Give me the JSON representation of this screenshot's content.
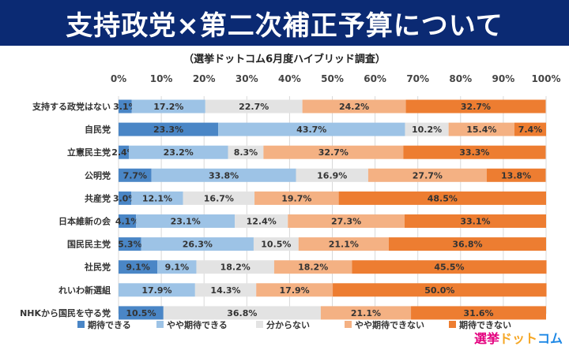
{
  "title": "支持政党×第二次補正予算について",
  "subtitle": "（選挙ドットコム6月度ハイブリッド調査）",
  "logo": {
    "part1": "選挙",
    "part2": "ドット",
    "part3": "コム"
  },
  "chart_data": {
    "type": "bar",
    "stacked": true,
    "orientation": "horizontal",
    "xlim": [
      0,
      100
    ],
    "x_ticks": [
      "0%",
      "10%",
      "20%",
      "30%",
      "40%",
      "50%",
      "60%",
      "70%",
      "80%",
      "90%",
      "100%"
    ],
    "legend_position": "bottom",
    "grid": true,
    "categories": [
      "支持する政党はない",
      "自民党",
      "立憲民主党",
      "公明党",
      "共産党",
      "日本維新の会",
      "国民民主党",
      "社民党",
      "れいわ新選組",
      "NHKから国民を守る党"
    ],
    "series": [
      {
        "name": "期待できる",
        "color": "#4a86c6",
        "values": [
          3.1,
          23.3,
          2.4,
          7.7,
          3.0,
          4.1,
          5.3,
          9.1,
          0,
          10.5
        ]
      },
      {
        "name": "やや期待できる",
        "color": "#9dc3e6",
        "values": [
          17.2,
          43.7,
          23.2,
          33.8,
          12.1,
          23.1,
          26.3,
          9.1,
          17.9,
          0
        ]
      },
      {
        "name": "分からない",
        "color": "#e3e3e3",
        "values": [
          22.7,
          10.2,
          8.3,
          16.9,
          16.7,
          12.4,
          10.5,
          18.2,
          14.3,
          36.8
        ]
      },
      {
        "name": "やや期待できない",
        "color": "#f4b183",
        "values": [
          24.2,
          15.4,
          32.7,
          27.7,
          19.7,
          27.3,
          21.1,
          18.2,
          17.9,
          21.1
        ]
      },
      {
        "name": "期待できない",
        "color": "#ed7d31",
        "values": [
          32.7,
          7.4,
          33.3,
          13.8,
          48.5,
          33.1,
          36.8,
          45.5,
          50.0,
          31.6
        ]
      }
    ]
  }
}
